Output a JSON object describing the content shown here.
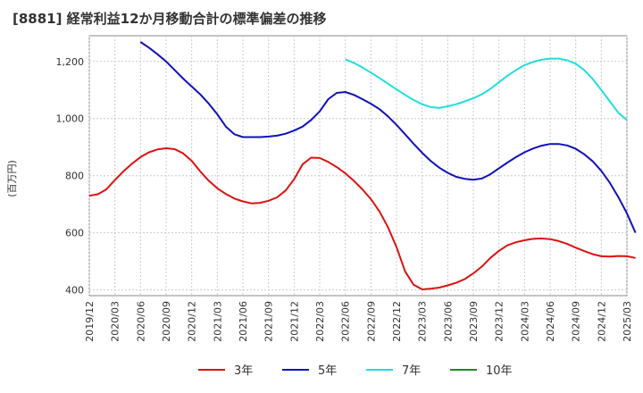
{
  "header": {
    "title": "[8881]  経常利益12か月移動合計の標準偏差の推移"
  },
  "chart_data": {
    "type": "line",
    "title": "[8881]  経常利益12か月移動合計の標準偏差の推移",
    "ylabel": "(百万円)",
    "xlabel": "",
    "ylim": [
      380,
      1290
    ],
    "yticks": [
      400,
      600,
      800,
      1000,
      1200
    ],
    "ytick_labels": [
      "400",
      "600",
      "800",
      "1,000",
      "1,200"
    ],
    "x_categories": [
      "2019/12",
      "2020/03",
      "2020/06",
      "2020/09",
      "2020/12",
      "2021/03",
      "2021/06",
      "2021/09",
      "2021/12",
      "2022/03",
      "2022/06",
      "2022/09",
      "2022/12",
      "2023/03",
      "2023/06",
      "2023/09",
      "2023/12",
      "2024/03",
      "2024/06",
      "2024/09",
      "2024/12",
      "2025/03"
    ],
    "grid": true,
    "legend_position": "bottom",
    "series": [
      {
        "name": "3年",
        "color": "#dd1111",
        "start_index": 0,
        "values": [
          730,
          735,
          752,
          785,
          815,
          842,
          865,
          882,
          892,
          896,
          893,
          878,
          852,
          815,
          782,
          756,
          736,
          720,
          710,
          703,
          705,
          712,
          724,
          748,
          787,
          840,
          863,
          862,
          848,
          830,
          808,
          782,
          752,
          718,
          675,
          620,
          550,
          465,
          418,
          402,
          404,
          408,
          416,
          425,
          438,
          458,
          482,
          512,
          537,
          556,
          567,
          574,
          579,
          580,
          578,
          571,
          561,
          548,
          536,
          525,
          518,
          517,
          519,
          518,
          512
        ]
      },
      {
        "name": "5年",
        "color": "#1111bb",
        "start_index": 6,
        "values": [
          1268,
          1248,
          1225,
          1200,
          1170,
          1140,
          1112,
          1085,
          1052,
          1015,
          972,
          945,
          935,
          935,
          935,
          937,
          940,
          947,
          958,
          972,
          995,
          1025,
          1068,
          1090,
          1093,
          1083,
          1068,
          1052,
          1033,
          1008,
          978,
          945,
          912,
          880,
          852,
          828,
          810,
          796,
          789,
          786,
          790,
          805,
          826,
          846,
          865,
          882,
          895,
          905,
          911,
          911,
          906,
          894,
          875,
          850,
          817,
          775,
          725,
          668,
          600
        ]
      },
      {
        "name": "7年",
        "color": "#22dddd",
        "start_index": 30,
        "values": [
          1207,
          1195,
          1179,
          1161,
          1142,
          1122,
          1102,
          1083,
          1065,
          1050,
          1040,
          1037,
          1043,
          1050,
          1060,
          1071,
          1085,
          1104,
          1127,
          1150,
          1170,
          1187,
          1198,
          1206,
          1210,
          1210,
          1204,
          1192,
          1170,
          1138,
          1100,
          1060,
          1020,
          995
        ]
      },
      {
        "name": "10年",
        "color": "#228822",
        "start_index": 0,
        "values": []
      }
    ]
  }
}
